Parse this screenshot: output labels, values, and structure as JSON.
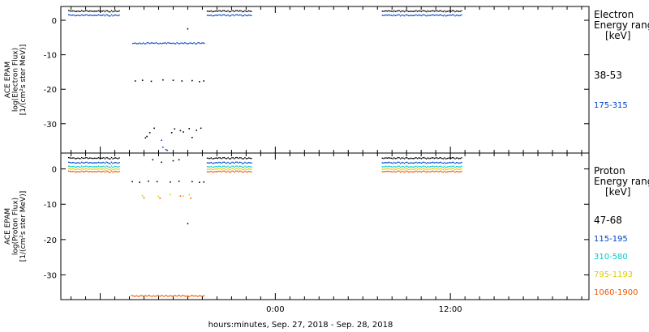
{
  "chart_data": [
    {
      "type": "scatter",
      "panel": "electron",
      "ylabel_lines": [
        "ACE EPAM",
        "log(Electron Flux)",
        "[1/(cm²s ster MeV)]"
      ],
      "ylim": [
        -38.5,
        4
      ],
      "yticks": [
        0,
        -10,
        -20,
        -30
      ],
      "x_hours_range": [
        -14.7,
        21.5
      ],
      "legend_title": [
        "Electron",
        "Energy ranges",
        "[keV]"
      ],
      "series": [
        {
          "name": "38-53",
          "color": "#000000",
          "segments": [
            {
              "x": [
                -14.2,
                -10.7
              ],
              "y": 2.8
            },
            {
              "x": [
                -4.7,
                -1.6
              ],
              "y": 2.8
            },
            {
              "x": [
                7.3,
                12.8
              ],
              "y": 2.8
            }
          ],
          "points": [
            [
              -9.6,
              -17.6
            ],
            [
              -9.1,
              -17.4
            ],
            [
              -8.5,
              -17.7
            ],
            [
              -7.7,
              -17.3
            ],
            [
              -7.0,
              -17.4
            ],
            [
              -6.4,
              -17.6
            ],
            [
              -5.7,
              -17.5
            ],
            [
              -5.2,
              -17.8
            ],
            [
              -4.9,
              -17.6
            ],
            [
              -8.3,
              -31.3
            ],
            [
              -6.9,
              -31.5
            ],
            [
              -5.9,
              -31.4
            ],
            [
              -5.4,
              -31.9
            ],
            [
              -6.3,
              -32.4
            ],
            [
              -5.1,
              -31.3
            ],
            [
              -8.8,
              -33.7
            ],
            [
              -8.6,
              -32.6
            ],
            [
              -7.1,
              -32.6
            ],
            [
              -6.5,
              -32.0
            ],
            [
              -8.9,
              -34.1
            ],
            [
              -5.7,
              -34.0
            ],
            [
              -6.0,
              -2.5
            ]
          ]
        },
        {
          "name": "175-315",
          "color": "#0044cc",
          "segments": [
            {
              "x": [
                -14.2,
                -10.7
              ],
              "y": 1.6
            },
            {
              "x": [
                -4.7,
                -1.6
              ],
              "y": 1.6
            },
            {
              "x": [
                7.3,
                12.8
              ],
              "y": 1.6
            },
            {
              "x": [
                -9.8,
                -4.9
              ],
              "y": -6.5
            }
          ],
          "points": [
            [
              -7.8,
              -34.8
            ],
            [
              -7.7,
              -36.8
            ],
            [
              -7.5,
              -37.5
            ],
            [
              -7.4,
              -37.7
            ]
          ]
        }
      ]
    },
    {
      "type": "scatter",
      "panel": "proton",
      "ylabel_lines": [
        "ACE EPAM",
        "log(Proton Flux)",
        "[1/(cm²s ster MeV)]"
      ],
      "ylim": [
        -37,
        4.5
      ],
      "yticks": [
        0,
        -10,
        -20,
        -30
      ],
      "x_hours_range": [
        -14.7,
        21.5
      ],
      "xtick_labels": [
        "0:00",
        "12:00"
      ],
      "xtick_hours": [
        0,
        12
      ],
      "xlabel": "hours:minutes, Sep. 27, 2018 - Sep. 28, 2018",
      "legend_title": [
        "Proton",
        "Energy ranges",
        "[keV]"
      ],
      "series": [
        {
          "name": "47-68",
          "color": "#000000",
          "segments": [
            {
              "x": [
                -14.2,
                -10.7
              ],
              "y": 3.2
            },
            {
              "x": [
                -4.7,
                -1.6
              ],
              "y": 3.2
            },
            {
              "x": [
                7.3,
                12.8
              ],
              "y": 3.2
            }
          ],
          "points": [
            [
              -9.8,
              -3.6
            ],
            [
              -9.3,
              -3.8
            ],
            [
              -8.7,
              -3.5
            ],
            [
              -8.1,
              -3.6
            ],
            [
              -7.2,
              -3.7
            ],
            [
              -6.6,
              -3.5
            ],
            [
              -5.7,
              -3.6
            ],
            [
              -5.2,
              -3.8
            ],
            [
              -4.9,
              -3.7
            ],
            [
              -8.4,
              2.6
            ],
            [
              -7.8,
              1.9
            ],
            [
              -7.0,
              2.3
            ],
            [
              -6.6,
              2.6
            ],
            [
              -6.0,
              -15.5
            ]
          ]
        },
        {
          "name": "115-195",
          "color": "#0044cc",
          "segments": [
            {
              "x": [
                -14.2,
                -10.7
              ],
              "y": 1.9
            },
            {
              "x": [
                -4.7,
                -1.6
              ],
              "y": 1.9
            },
            {
              "x": [
                7.3,
                12.8
              ],
              "y": 1.9
            }
          ],
          "points": []
        },
        {
          "name": "310-580",
          "color": "#00cccc",
          "segments": [
            {
              "x": [
                -14.2,
                -10.7
              ],
              "y": 0.8
            },
            {
              "x": [
                -4.7,
                -1.6
              ],
              "y": 0.8
            },
            {
              "x": [
                7.3,
                12.8
              ],
              "y": 0.8
            }
          ],
          "points": []
        },
        {
          "name": "795-1193",
          "color": "#ddcc00",
          "segments": [
            {
              "x": [
                -14.2,
                -10.7
              ],
              "y": 0.1
            },
            {
              "x": [
                -4.7,
                -1.6
              ],
              "y": 0.1
            },
            {
              "x": [
                7.3,
                12.8
              ],
              "y": 0.1
            }
          ],
          "points": [
            [
              -9.1,
              -7.6
            ],
            [
              -8.0,
              -7.8
            ],
            [
              -7.2,
              -7.3
            ],
            [
              -6.3,
              -7.7
            ],
            [
              -5.9,
              -7.3
            ]
          ]
        },
        {
          "name": "1060-1900",
          "color": "#ee5500",
          "segments": [
            {
              "x": [
                -14.2,
                -10.7
              ],
              "y": -0.6
            },
            {
              "x": [
                -4.7,
                -1.6
              ],
              "y": -0.6
            },
            {
              "x": [
                7.3,
                12.8
              ],
              "y": -0.6
            },
            {
              "x": [
                -9.9,
                -4.9
              ],
              "y": -35.8
            }
          ],
          "points": [
            [
              -9.0,
              -8.2
            ],
            [
              -7.9,
              -8.3
            ],
            [
              -6.5,
              -7.7
            ],
            [
              -5.8,
              -8.3
            ]
          ]
        }
      ]
    }
  ]
}
